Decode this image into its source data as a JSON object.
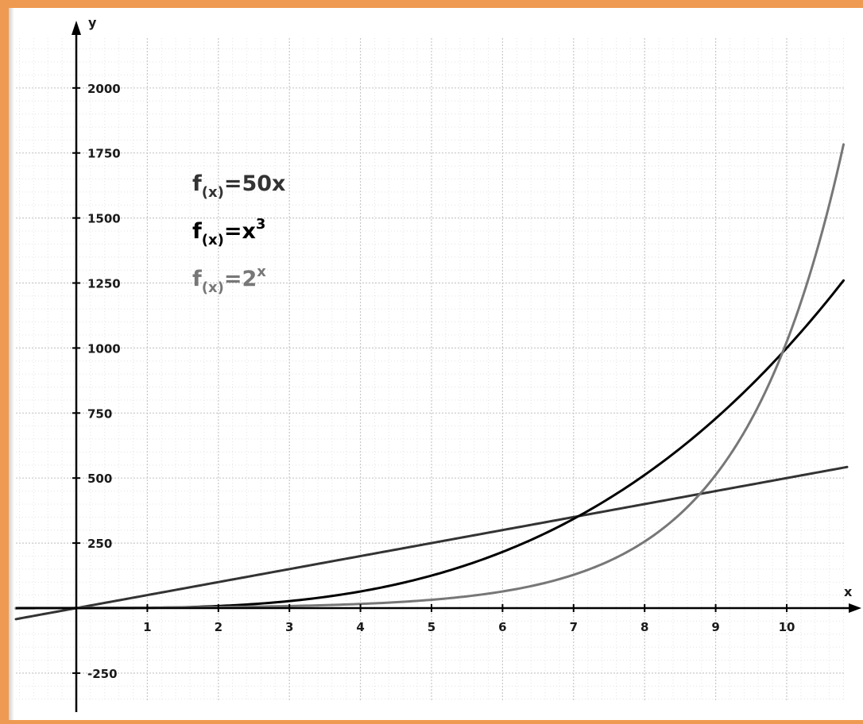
{
  "chart_data": {
    "type": "line",
    "xlabel": "x",
    "ylabel": "y",
    "xlim": [
      -0.85,
      10.85
    ],
    "ylim": [
      -390,
      2200
    ],
    "x_ticks": [
      1,
      2,
      3,
      4,
      5,
      6,
      7,
      8,
      9,
      10
    ],
    "y_ticks": [
      -250,
      250,
      500,
      750,
      1000,
      1250,
      1500,
      1750,
      2000
    ],
    "grid": true,
    "series": [
      {
        "name": "f(x)=50x",
        "label_parts": {
          "f": "f",
          "sub": "(x)",
          "rest": "=50x",
          "sup": ""
        },
        "color": "#333333",
        "x": [
          -0.85,
          0,
          2,
          4,
          6,
          8,
          10,
          10.85
        ],
        "y": [
          -42.5,
          0,
          100,
          200,
          300,
          400,
          500,
          542.5
        ]
      },
      {
        "name": "f(x)=x3",
        "label_parts": {
          "f": "f",
          "sub": "(x)",
          "rest": "=x",
          "sup": "3"
        },
        "color": "#000000",
        "x": [
          -0.85,
          0,
          1,
          2,
          3,
          4,
          5,
          6,
          7,
          8,
          9,
          10,
          10.8
        ],
        "y": [
          -0.6,
          0,
          1,
          8,
          27,
          64,
          125,
          216,
          343,
          512,
          729,
          1000,
          1260
        ]
      },
      {
        "name": "f(x)=2x",
        "label_parts": {
          "f": "f",
          "sub": "(x)",
          "rest": "=2",
          "sup": "x"
        },
        "color": "#777777",
        "x": [
          -0.85,
          0,
          1,
          2,
          3,
          4,
          5,
          6,
          7,
          8,
          9,
          10,
          10.8
        ],
        "y": [
          0.55,
          1,
          2,
          4,
          8,
          16,
          32,
          64,
          128,
          256,
          512,
          1024,
          1783
        ]
      }
    ]
  },
  "theme": {
    "border_color": "#ef9a52",
    "grid_major": "#c8c8c8",
    "grid_minor": "#e4e4e4",
    "axis_color": "#000000"
  }
}
